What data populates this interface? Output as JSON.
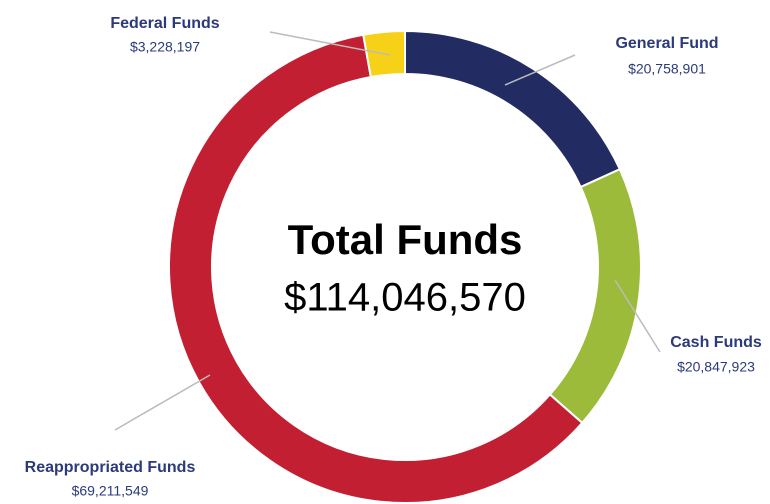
{
  "chart_data": {
    "type": "donut",
    "categories": [
      "General Fund",
      "Cash Funds",
      "Reappropriated Funds",
      "Federal Funds"
    ],
    "values": [
      20758901,
      20847923,
      69211549,
      3228197
    ],
    "value_labels": [
      "$20,758,901",
      "$20,847,923",
      "$69,211,549",
      "$3,228,197"
    ],
    "colors": [
      "#232b63",
      "#9dbb3a",
      "#c21f33",
      "#f7d117"
    ],
    "center_title": "Total Funds",
    "center_text": "$114,046,570"
  }
}
